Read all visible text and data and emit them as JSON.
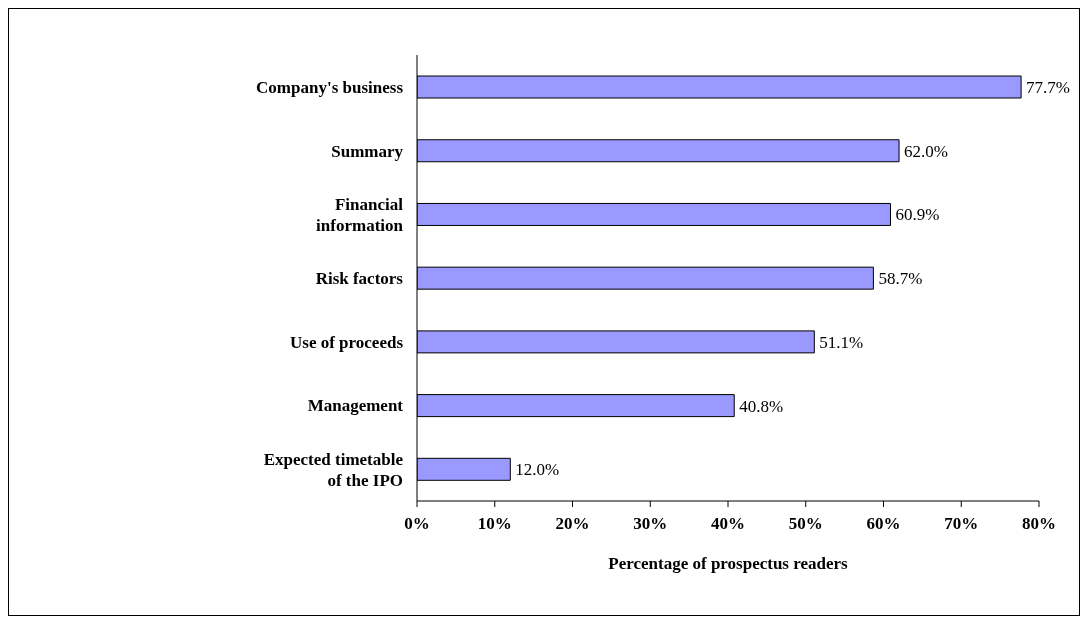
{
  "chart_data": {
    "type": "bar",
    "orientation": "horizontal",
    "xlabel": "Percentage of prospectus readers",
    "categories": [
      "Company's business",
      "Summary",
      "Financial information",
      "Risk factors",
      "Use of proceeds",
      "Management",
      "Expected timetable of the IPO"
    ],
    "values": [
      77.7,
      62.0,
      60.9,
      58.7,
      51.1,
      40.8,
      12.0
    ],
    "value_labels": [
      "77.7%",
      "62.0%",
      "60.9%",
      "58.7%",
      "51.1%",
      "40.8%",
      "12.0%"
    ],
    "color": "#9999ff",
    "xlim": [
      0,
      80
    ],
    "xticks": [
      {
        "value": 0,
        "label": "0%"
      },
      {
        "value": 10,
        "label": "10%"
      },
      {
        "value": 20,
        "label": "20%"
      },
      {
        "value": 30,
        "label": "30%"
      },
      {
        "value": 40,
        "label": "40%"
      },
      {
        "value": 50,
        "label": "50%"
      },
      {
        "value": 60,
        "label": "60%"
      },
      {
        "value": 70,
        "label": "70%"
      },
      {
        "value": 80,
        "label": "80%"
      }
    ],
    "grid": false,
    "legend": false
  }
}
